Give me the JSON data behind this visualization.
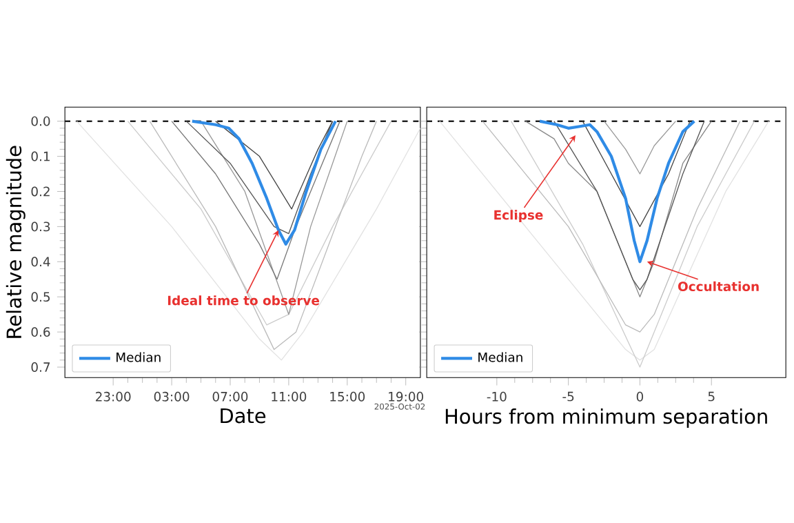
{
  "chart_data": [
    {
      "type": "line",
      "xlabel": "Date",
      "ylabel": "Relative magnitude",
      "xlim": [
        "2025-10-01T19:42",
        "2025-10-02T20:00"
      ],
      "ylim": [
        0.73,
        -0.04
      ],
      "xticks": [
        {
          "value": "2025-10-01T23:00",
          "label": "23:00"
        },
        {
          "value": "2025-10-02T03:00",
          "label": "03:00"
        },
        {
          "value": "2025-10-02T07:00",
          "label": "07:00"
        },
        {
          "value": "2025-10-02T11:00",
          "label": "11:00"
        },
        {
          "value": "2025-10-02T15:00",
          "label": "15:00"
        },
        {
          "value": "2025-10-02T19:00",
          "label": "19:00"
        }
      ],
      "yticks": [
        {
          "value": 0,
          "label": "0.0"
        },
        {
          "value": 0.1,
          "label": "0.1"
        },
        {
          "value": 0.2,
          "label": "0.2"
        },
        {
          "value": 0.3,
          "label": "0.3"
        },
        {
          "value": 0.4,
          "label": "0.4"
        },
        {
          "value": 0.5,
          "label": "0.5"
        },
        {
          "value": 0.6,
          "label": "0.6"
        },
        {
          "value": 0.7,
          "label": "0.7"
        }
      ],
      "legend": "bottom left",
      "series": [
        {
          "color": "#e2e2e2",
          "x": [
            "2025-10-01T20:30",
            "2025-10-02T03:00",
            "2025-10-02T09:00",
            "2025-10-02T10:30",
            "2025-10-02T12:00",
            "2025-10-02T17:00",
            "2025-10-02T20:00"
          ],
          "values": [
            0,
            0.3,
            0.62,
            0.68,
            0.6,
            0.25,
            0.02
          ]
        },
        {
          "color": "#cccccc",
          "x": [
            "2025-10-02T00:00",
            "2025-10-02T05:00",
            "2025-10-02T09:30",
            "2025-10-02T11:00",
            "2025-10-02T14:00",
            "2025-10-02T18:00"
          ],
          "values": [
            0,
            0.25,
            0.58,
            0.55,
            0.3,
            0
          ]
        },
        {
          "color": "#bbbbbb",
          "x": [
            "2025-10-02T01:30",
            "2025-10-02T06:00",
            "2025-10-02T10:00",
            "2025-10-02T11:30",
            "2025-10-02T16:00",
            "2025-10-02T17:00"
          ],
          "values": [
            0,
            0.3,
            0.65,
            0.6,
            0.1,
            0
          ]
        },
        {
          "color": "#999999",
          "x": [
            "2025-10-02T05:00",
            "2025-10-02T08:00",
            "2025-10-02T11:00",
            "2025-10-02T12:30",
            "2025-10-02T15:00"
          ],
          "values": [
            0,
            0.2,
            0.55,
            0.3,
            0
          ]
        },
        {
          "color": "#777777",
          "x": [
            "2025-10-02T03:00",
            "2025-10-02T06:00",
            "2025-10-02T09:00",
            "2025-10-02T10:12",
            "2025-10-02T11:30",
            "2025-10-02T14:30"
          ],
          "values": [
            0,
            0.15,
            0.35,
            0.45,
            0.3,
            0
          ]
        },
        {
          "color": "#555555",
          "x": [
            "2025-10-02T04:00",
            "2025-10-02T07:00",
            "2025-10-02T10:00",
            "2025-10-02T11:00",
            "2025-10-02T12:30",
            "2025-10-02T14:00"
          ],
          "values": [
            0,
            0.12,
            0.3,
            0.32,
            0.15,
            0
          ]
        },
        {
          "color": "#444444",
          "x": [
            "2025-10-02T06:00",
            "2025-10-02T09:00",
            "2025-10-02T11:12",
            "2025-10-02T13:00",
            "2025-10-02T14:00"
          ],
          "values": [
            0,
            0.1,
            0.25,
            0.08,
            0
          ]
        },
        {
          "name": "Median",
          "color": "#2f8be6",
          "x": [
            "2025-10-02T04:24",
            "2025-10-02T06:00",
            "2025-10-02T06:54",
            "2025-10-02T07:36",
            "2025-10-02T08:30",
            "2025-10-02T09:30",
            "2025-10-02T10:18",
            "2025-10-02T10:48",
            "2025-10-02T11:24",
            "2025-10-02T12:12",
            "2025-10-02T13:12",
            "2025-10-02T14:12"
          ],
          "values": [
            0,
            0.01,
            0.02,
            0.05,
            0.12,
            0.22,
            0.31,
            0.35,
            0.31,
            0.2,
            0.08,
            0
          ]
        }
      ],
      "ref_lines": [
        {
          "axis": "y",
          "value": 0,
          "color": "#000000",
          "line_style": "dashed"
        }
      ],
      "annotations": [
        {
          "text": "Ideal time to observe",
          "x": "2025-10-02T10:18",
          "y": 0.31
        },
        "2025-Oct-02"
      ]
    },
    {
      "type": "line",
      "xlabel": "Hours from minimum separation",
      "xlim": [
        -14.9,
        10.2
      ],
      "ylim": [
        0.73,
        -0.04
      ],
      "xticks": [
        -10,
        -5,
        0,
        5
      ],
      "yticks": [
        0,
        0.1,
        0.2,
        0.3,
        0.4,
        0.5,
        0.6,
        0.7
      ],
      "tick_labels": "x",
      "legend": "bottom left",
      "series": [
        {
          "color": "#e2e2e2",
          "x": [
            -14,
            -7,
            -1,
            0,
            1,
            6,
            9
          ],
          "values": [
            0,
            0.35,
            0.65,
            0.68,
            0.65,
            0.2,
            0
          ]
        },
        {
          "color": "#cccccc",
          "x": [
            -9,
            -4,
            0,
            4,
            8
          ],
          "values": [
            0,
            0.35,
            0.7,
            0.3,
            0
          ]
        },
        {
          "color": "#bbbbbb",
          "x": [
            -11,
            -5,
            -1,
            0,
            1,
            4,
            7
          ],
          "values": [
            0,
            0.3,
            0.58,
            0.6,
            0.55,
            0.25,
            0
          ]
        },
        {
          "color": "#888888",
          "x": [
            -8,
            -6,
            -5,
            -3,
            -1,
            0,
            1,
            3,
            5
          ],
          "values": [
            0,
            0.05,
            0.12,
            0.2,
            0.4,
            0.5,
            0.4,
            0.12,
            0
          ]
        },
        {
          "color": "#999999",
          "x": [
            -2.5,
            -1,
            0,
            1,
            2.5
          ],
          "values": [
            0,
            0.08,
            0.15,
            0.07,
            0
          ]
        },
        {
          "color": "#555555",
          "x": [
            -6,
            -3,
            -0.5,
            0,
            0.5,
            3,
            4.5
          ],
          "values": [
            0,
            0.2,
            0.45,
            0.48,
            0.45,
            0.15,
            0
          ]
        },
        {
          "color": "#444444",
          "x": [
            -4,
            -2,
            0,
            2,
            3.5
          ],
          "values": [
            0,
            0.15,
            0.3,
            0.15,
            0
          ]
        },
        {
          "name": "Median",
          "color": "#2f8be6",
          "x": [
            -7,
            -5.8,
            -5,
            -4.2,
            -3.5,
            -3,
            -2,
            -1,
            -0.4,
            0,
            0.5,
            1.2,
            2,
            3,
            3.8
          ],
          "values": [
            0,
            0.01,
            0.02,
            0.015,
            0.01,
            0.03,
            0.1,
            0.22,
            0.34,
            0.4,
            0.34,
            0.22,
            0.12,
            0.03,
            0
          ]
        }
      ],
      "ref_lines": [
        {
          "axis": "y",
          "value": 0,
          "color": "#000000",
          "line_style": "dashed"
        }
      ],
      "annotations": [
        {
          "text": "Eclipse",
          "x": -4.5,
          "y": 0.04
        },
        {
          "text": "Occultation",
          "x": 0.5,
          "y": 0.4
        }
      ]
    }
  ]
}
